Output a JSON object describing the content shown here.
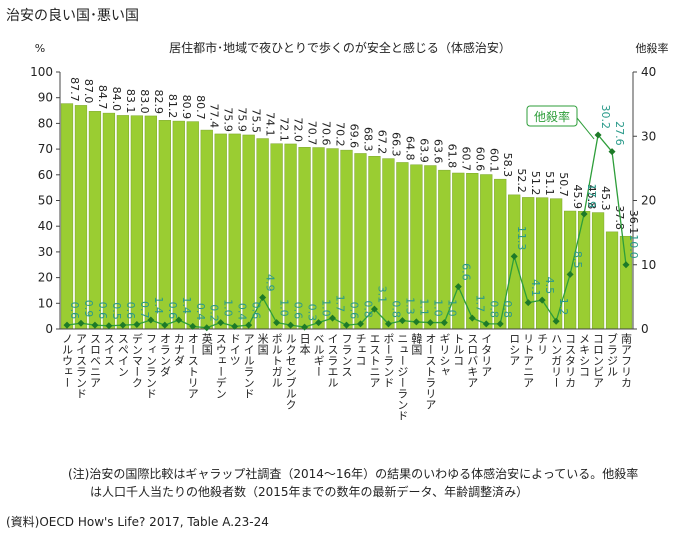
{
  "chart_data": {
    "type": "bar_line",
    "title": "治安の良い国･悪い国",
    "subtitle": "居住都市･地域で夜ひとりで歩くのが安全と感じる（体感治安）",
    "y_label": "%",
    "y2_label": "他殺率",
    "categories": [
      "ノルウェー",
      "アイスランド",
      "スロベニア",
      "スイス",
      "スペイン",
      "デンマーク",
      "フィンランド",
      "オランダ",
      "カナダ",
      "オーストリア",
      "英国",
      "スウェーデン",
      "ドイツ",
      "アイルランド",
      "米国",
      "ポルトガル",
      "ルクセンブルク",
      "日本",
      "ベルギー",
      "イスラエル",
      "フランス",
      "チェコ",
      "エストニア",
      "ポーランド",
      "ニュージーランド",
      "韓国",
      "オーストラリア",
      "ギリシャ",
      "トルコ",
      "スロバキア",
      "イタリア",
      null,
      "ロシア",
      "リトアニア",
      "チリ",
      "ハンガリー",
      "コスタリカ",
      "メキシコ",
      "コロンビア",
      "ブラジル",
      "南アフリカ"
    ],
    "series": [
      {
        "color": "#9acd32",
        "values": [
          87.7,
          87.0,
          84.7,
          84.0,
          83.1,
          83.0,
          82.9,
          81.2,
          80.9,
          80.7,
          77.4,
          75.9,
          75.9,
          75.5,
          74.1,
          72.1,
          72.0,
          70.7,
          70.6,
          70.2,
          69.6,
          68.3,
          67.2,
          66.3,
          64.8,
          63.9,
          63.6,
          61.8,
          60.7,
          60.6,
          60.1,
          58.3,
          52.2,
          51.2,
          51.1,
          50.7,
          45.9,
          45.8,
          45.3,
          37.8,
          36.1
        ],
        "value_labels": [
          "87.7",
          "87.0",
          "84.7",
          "84.0",
          "83.1",
          "83.0",
          "82.9",
          "81.2",
          "80.9",
          "80.7",
          "77.4",
          "75.9",
          "75.9",
          "75.5",
          "74.1",
          "72.1",
          "72.0",
          "70.7",
          "70.6",
          "70.2",
          "69.6",
          "68.3",
          "67.2",
          "66.3",
          "64.8",
          "63.9",
          "63.6",
          "61.8",
          "60.7",
          "60.6",
          "60.1",
          "58.3",
          "52.2",
          "51.2",
          "51.1",
          "50.7",
          "45.9",
          "45.8",
          "45.3",
          "37.8",
          "36.1"
        ]
      },
      {
        "name": "他殺率",
        "axis": "y2",
        "color": "#2e9e3a",
        "values": [
          0.6,
          0.9,
          0.6,
          0.5,
          0.6,
          0.7,
          1.4,
          0.6,
          1.4,
          0.4,
          0.2,
          1.0,
          0.4,
          0.6,
          4.9,
          1.0,
          0.6,
          0.3,
          1.0,
          1.7,
          0.6,
          0.8,
          3.1,
          0.8,
          1.3,
          1.1,
          1.0,
          1.0,
          6.6,
          1.7,
          0.8,
          0.8,
          11.3,
          4.1,
          4.5,
          1.2,
          8.5,
          17.9,
          30.2,
          27.6,
          10.0
        ],
        "value_labels": [
          "0.6",
          "0.9",
          "0.6",
          "0.5",
          "0.6",
          "0.7",
          "1.4",
          "0.6",
          "1.4",
          "0.4",
          "0.2",
          "1.0",
          "0.4",
          "0.6",
          "4.9",
          "1.0",
          "0.6",
          "0.3",
          "1.0",
          "1.7",
          "0.6",
          "0.8",
          "3.1",
          "0.8",
          "1.3",
          "1.1",
          "1.0",
          "1.0",
          "6.6",
          "1.7",
          "0.8",
          "0.8",
          "11.3",
          "4.1",
          "4.5",
          "1.2",
          "8.5",
          "17.9",
          "30.2",
          "27.6",
          "10.0"
        ]
      }
    ],
    "ylim": [
      0,
      100
    ],
    "yticks": [
      0,
      10,
      20,
      30,
      40,
      50,
      60,
      70,
      80,
      90,
      100
    ],
    "y2lim": [
      0,
      40
    ],
    "y2ticks": [
      0,
      10,
      20,
      30,
      40
    ],
    "notes": [
      "(注)治安の国際比較はギャラップ社調査（2014～16年）の結果のいわゆる体感治安によっている。他殺率",
      "は人口千人当たりの他殺者数（2015年までの数年の最新データ、年齢調整済み）",
      "(資料)OECD How's Life? 2017, Table A.23-24"
    ]
  }
}
